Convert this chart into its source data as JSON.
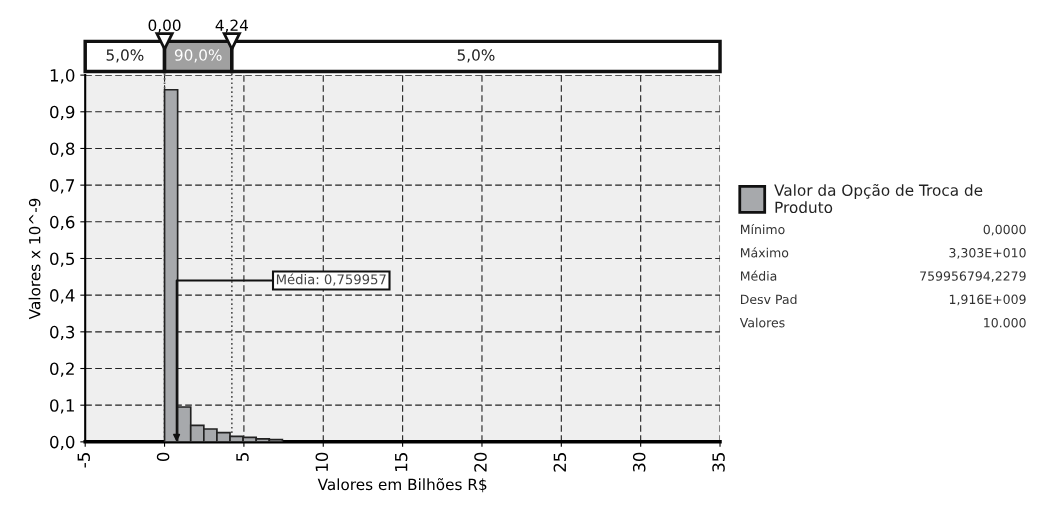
{
  "chart_data": {
    "type": "histogram",
    "xlabel": "Valores em Bilhões R$",
    "ylabel": "Valores x 10^-9",
    "bins": [
      0,
      0.825,
      1.65,
      2.475,
      3.3,
      4.125,
      4.95,
      5.775,
      6.6,
      7.425,
      8.25,
      9.075,
      9.9
    ],
    "series": [
      {
        "name": "Valor da Opção de Troca de Produto",
        "color": "#a7a9ac",
        "values": [
          0.96,
          0.095,
          0.045,
          0.035,
          0.025,
          0.015,
          0.012,
          0.008,
          0.006,
          null,
          null,
          null
        ]
      }
    ],
    "xlim": [
      -5,
      35
    ],
    "xticks": [
      -5,
      0,
      5,
      10,
      15,
      20,
      25,
      30,
      35
    ],
    "ylim": [
      0,
      1.0
    ],
    "yticks": [
      {
        "value": 0,
        "label": "0,0"
      },
      {
        "value": 0.1,
        "label": "0,1"
      },
      {
        "value": 0.2,
        "label": "0,2"
      },
      {
        "value": 0.3,
        "label": "0,3"
      },
      {
        "value": 0.4,
        "label": "0,4"
      },
      {
        "value": 0.5,
        "label": "0,5"
      },
      {
        "value": 0.6,
        "label": "0,6"
      },
      {
        "value": 0.7,
        "label": "0,7"
      },
      {
        "value": 0.8,
        "label": "0,8"
      },
      {
        "value": 0.9,
        "label": "0,9"
      },
      {
        "value": 1.0,
        "label": "1,0"
      }
    ],
    "ref_lines": [
      {
        "axis": "x",
        "value": 0,
        "label": "0,00",
        "line_style": "dotted",
        "color": "#555555"
      },
      {
        "axis": "x",
        "value": 4.24,
        "label": "4,24",
        "line_style": "dotted",
        "color": "#555555"
      }
    ],
    "annotations": [
      {
        "text": "Média: 0,759957",
        "x": 0.759957,
        "y": 0
      },
      "5,0%",
      "90,0%",
      "5,0%",
      "Mínimo",
      "0,0000",
      "Máximo",
      "3,303E+010",
      "Média",
      "759956794,2279",
      "Desv Pad",
      "1,916E+009",
      "Valores",
      "10.000"
    ],
    "grid": true,
    "legend": "right"
  }
}
